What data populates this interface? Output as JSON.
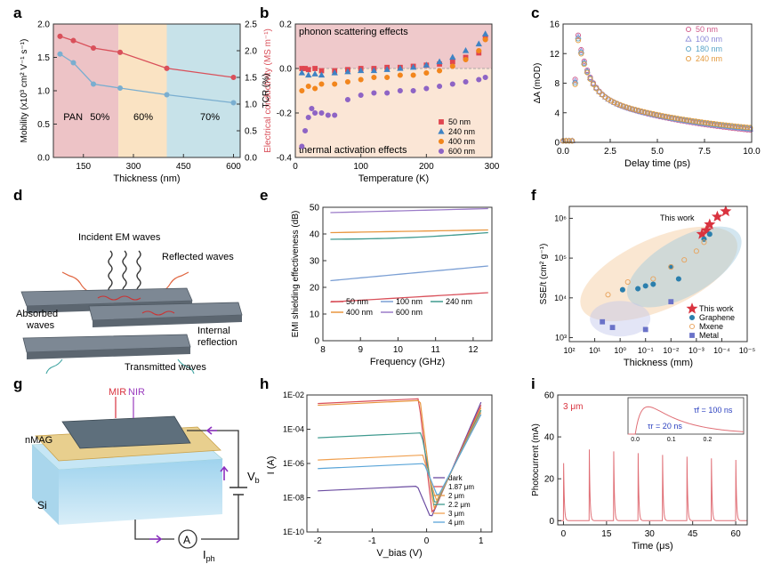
{
  "panel_letters": [
    "a",
    "b",
    "c",
    "d",
    "e",
    "f",
    "g",
    "h",
    "i"
  ],
  "chart_data": [
    {
      "id": "a",
      "type": "line",
      "xlabel": "Thickness (nm)",
      "ylabel": "Mobility (x10³ cm² V⁻¹ s⁻¹)",
      "y2label": "Electrical conductivity (MS m⁻¹)",
      "xlim": [
        60,
        620
      ],
      "ylim": [
        0,
        2.0
      ],
      "y2lim": [
        0,
        2.5
      ],
      "xticks": [
        150,
        300,
        450,
        600
      ],
      "yticks": [
        0.0,
        0.5,
        1.0,
        1.5,
        2.0
      ],
      "y2ticks": [
        0.0,
        0.5,
        1.0,
        1.5,
        2.0,
        2.5
      ],
      "regions": [
        {
          "label": "PAN",
          "x0": 60,
          "x1": 255,
          "color": "#e8b4b8"
        },
        {
          "label": "60%",
          "x0": 255,
          "x1": 400,
          "color": "#f9dcb4"
        },
        {
          "label": "70%",
          "x0": 400,
          "x1": 620,
          "color": "#b9dbe3"
        }
      ],
      "region_text_50": "50%",
      "series": [
        {
          "axis": "left",
          "color": "#7aaed0",
          "x": [
            80,
            120,
            180,
            260,
            400,
            600
          ],
          "y": [
            1.55,
            1.42,
            1.1,
            1.04,
            0.94,
            0.82
          ]
        },
        {
          "axis": "right",
          "color": "#d9505a",
          "x": [
            80,
            120,
            180,
            260,
            400,
            600
          ],
          "y": [
            2.27,
            2.19,
            2.05,
            1.97,
            1.67,
            1.5
          ]
        }
      ]
    },
    {
      "id": "b",
      "type": "scatter",
      "xlabel": "Temperature (K)",
      "ylabel": "TCR (%)",
      "xlim": [
        0,
        300
      ],
      "ylim": [
        -0.4,
        0.2
      ],
      "xticks": [
        0,
        100,
        200,
        300
      ],
      "yticks": [
        -0.4,
        -0.2,
        0.0,
        0.2
      ],
      "top_annotation": "phonon scattering effects",
      "bottom_annotation": "thermal activation effects",
      "series": [
        {
          "name": "50 nm",
          "color": "#e0454f",
          "marker": "square",
          "x": [
            10,
            15,
            20,
            30,
            40,
            60,
            80,
            100,
            120,
            140,
            160,
            180,
            200,
            220,
            240,
            260,
            280,
            290
          ],
          "y": [
            0.0,
            0.0,
            -0.005,
            0.0,
            -0.01,
            -0.01,
            -0.005,
            0.0,
            0.0,
            0.005,
            0.005,
            0.01,
            0.015,
            0.02,
            0.03,
            0.05,
            0.07,
            0.14
          ]
        },
        {
          "name": "240 nm",
          "color": "#3f83c4",
          "marker": "triangle",
          "x": [
            10,
            20,
            30,
            40,
            60,
            80,
            100,
            120,
            140,
            160,
            180,
            200,
            220,
            240,
            260,
            280,
            290
          ],
          "y": [
            -0.02,
            -0.03,
            -0.025,
            -0.03,
            -0.02,
            -0.015,
            -0.01,
            -0.01,
            -0.005,
            0.0,
            0.005,
            0.015,
            0.03,
            0.05,
            0.08,
            0.11,
            0.155
          ]
        },
        {
          "name": "400 nm",
          "color": "#f2861d",
          "marker": "circle",
          "x": [
            10,
            20,
            30,
            40,
            60,
            80,
            100,
            120,
            140,
            160,
            180,
            200,
            220,
            240,
            260,
            280,
            290
          ],
          "y": [
            -0.1,
            -0.08,
            -0.09,
            -0.07,
            -0.07,
            -0.06,
            -0.05,
            -0.04,
            -0.04,
            -0.03,
            -0.03,
            -0.02,
            -0.01,
            0.01,
            0.04,
            0.08,
            0.13
          ]
        },
        {
          "name": "600 nm",
          "color": "#8e64c5",
          "marker": "circle",
          "x": [
            10,
            15,
            20,
            25,
            30,
            40,
            50,
            60,
            80,
            100,
            120,
            140,
            160,
            180,
            200,
            220,
            240,
            260,
            280,
            290
          ],
          "y": [
            -0.35,
            -0.28,
            -0.22,
            -0.18,
            -0.2,
            -0.2,
            -0.21,
            -0.21,
            -0.14,
            -0.12,
            -0.11,
            -0.11,
            -0.1,
            -0.1,
            -0.09,
            -0.08,
            -0.07,
            -0.06,
            -0.05,
            -0.04
          ]
        }
      ]
    },
    {
      "id": "c",
      "type": "scatter",
      "xlabel": "Delay time (ps)",
      "ylabel": "ΔA (mOD)",
      "xlim": [
        0,
        10
      ],
      "ylim": [
        0,
        16
      ],
      "xticks": [
        0.0,
        2.5,
        5.0,
        7.5,
        10.0
      ],
      "yticks": [
        0,
        4,
        8,
        12,
        16
      ],
      "series": [
        {
          "name": "50 nm",
          "color": "#d05a8a",
          "marker": "circle"
        },
        {
          "name": "100 nm",
          "color": "#8a8ad8",
          "marker": "triangle"
        },
        {
          "name": "180 nm",
          "color": "#5aa5c8",
          "marker": "circle"
        },
        {
          "name": "240 nm",
          "color": "#e39a3e",
          "marker": "circle"
        }
      ]
    },
    {
      "id": "e",
      "type": "line",
      "xlabel": "Frequency (GHz)",
      "ylabel": "EMI shielding effectiveness (dB)",
      "xlim": [
        8,
        12.5
      ],
      "ylim": [
        0,
        50
      ],
      "xticks": [
        8,
        9,
        10,
        11,
        12
      ],
      "yticks": [
        0,
        10,
        20,
        30,
        40,
        50
      ],
      "series": [
        {
          "name": "50 nm",
          "color": "#d9505a",
          "x": [
            8.2,
            12.4
          ],
          "y": [
            14.5,
            18
          ]
        },
        {
          "name": "100 nm",
          "color": "#7b9fd4",
          "x": [
            8.2,
            12.4
          ],
          "y": [
            22.5,
            28
          ]
        },
        {
          "name": "240 nm",
          "color": "#3f9a8f",
          "x": [
            8.2,
            12.4
          ],
          "y": [
            38,
            40.5
          ]
        },
        {
          "name": "400 nm",
          "color": "#e8953e",
          "x": [
            8.2,
            12.4
          ],
          "y": [
            40.5,
            41.5
          ]
        },
        {
          "name": "600 nm",
          "color": "#9b7bc8",
          "x": [
            8.2,
            12.4
          ],
          "y": [
            48,
            49.5
          ]
        }
      ]
    },
    {
      "id": "f",
      "type": "scatter",
      "xlabel": "Thickness (mm)",
      "ylabel": "SSE/t (cm² g⁻¹)",
      "xscale": "log-reversed",
      "yscale": "log",
      "xticks": [
        "10²",
        "10¹",
        "10⁰",
        "10⁻¹",
        "10⁻²",
        "10⁻³",
        "10⁻⁴",
        "10⁻⁵"
      ],
      "yticks": [
        "10³",
        "10⁴",
        "10⁵",
        "10⁶"
      ],
      "annotation": "This work",
      "series": [
        {
          "name": "This work",
          "color": "#d9333f",
          "marker": "star",
          "x": [
            0.0006,
            0.0004,
            0.0003,
            0.00015,
            7e-05
          ],
          "y": [
            400000,
            500000,
            700000,
            1100000,
            1500000
          ]
        },
        {
          "name": "Graphene",
          "color": "#2b7fad",
          "marker": "circle",
          "x": [
            0.8,
            0.2,
            0.1,
            0.05,
            0.01,
            0.005,
            0.0005,
            0.0003
          ],
          "y": [
            16000,
            17000,
            20000,
            22000,
            60000,
            30000,
            300000,
            400000
          ]
        },
        {
          "name": "Mxene",
          "color": "#e8a35c",
          "marker": "circle",
          "x": [
            3,
            0.5,
            0.05,
            0.01,
            0.003,
            0.001,
            0.0005
          ],
          "y": [
            12000,
            25000,
            30000,
            60000,
            90000,
            150000,
            250000
          ]
        },
        {
          "name": "Metal",
          "color": "#6a72c8",
          "marker": "square",
          "x": [
            5,
            2,
            0.1,
            0.01
          ],
          "y": [
            2500,
            1800,
            1600,
            8000
          ]
        }
      ]
    },
    {
      "id": "h",
      "type": "line",
      "xlabel": "V_bias (V)",
      "ylabel": "I (A)",
      "xlim": [
        -2.2,
        1.2
      ],
      "yscale": "log",
      "xticks": [
        -2,
        -1,
        0,
        1
      ],
      "yticks": [
        "1E-10",
        "1E-08",
        "1E-06",
        "1E-04",
        "1E-02"
      ],
      "series": [
        {
          "name": "dark",
          "color": "#6b4ca1",
          "left_log_i": -7.6
        },
        {
          "name": "1.87 μm",
          "color": "#d9505a",
          "left_log_i": -2.5
        },
        {
          "name": "2 μm",
          "color": "#e8953e",
          "left_log_i": -2.6
        },
        {
          "name": "2.2 μm",
          "color": "#3f9a8f",
          "left_log_i": -4.5
        },
        {
          "name": "3 μm",
          "color": "#f0a050",
          "left_log_i": -5.8
        },
        {
          "name": "4 μm",
          "color": "#5aa5d8",
          "left_log_i": -6.3
        }
      ]
    },
    {
      "id": "i",
      "type": "line",
      "xlabel": "Time (μs)",
      "ylabel": "Photocurrent (mA)",
      "xlim": [
        -2,
        64
      ],
      "ylim": [
        -2,
        60
      ],
      "xticks": [
        0,
        15,
        30,
        45,
        60
      ],
      "yticks": [
        0,
        20,
        40,
        60
      ],
      "annotation": "3 μm",
      "pulse_times": [
        0,
        9,
        17.5,
        26,
        34.5,
        43,
        51.5,
        60
      ],
      "pulse_peak": 34,
      "inset": {
        "xticks": [
          "0.0",
          "0.1",
          "0.2"
        ],
        "tau_r": "τr = 20 ns",
        "tau_f": "τf = 100 ns"
      }
    }
  ],
  "diagram_d": {
    "incident": "Incident EM waves",
    "reflected": "Reflected waves",
    "absorbed": "Absorbed waves",
    "internal": "Internal reflection",
    "transmitted": "Transmitted waves"
  },
  "diagram_g": {
    "mir": "MIR",
    "nir": "NIR",
    "nmag": "nMAG",
    "si": "Si",
    "vb": "V",
    "vb_sub": "b",
    "ammeter": "A",
    "iph": "I",
    "iph_sub": "ph"
  }
}
